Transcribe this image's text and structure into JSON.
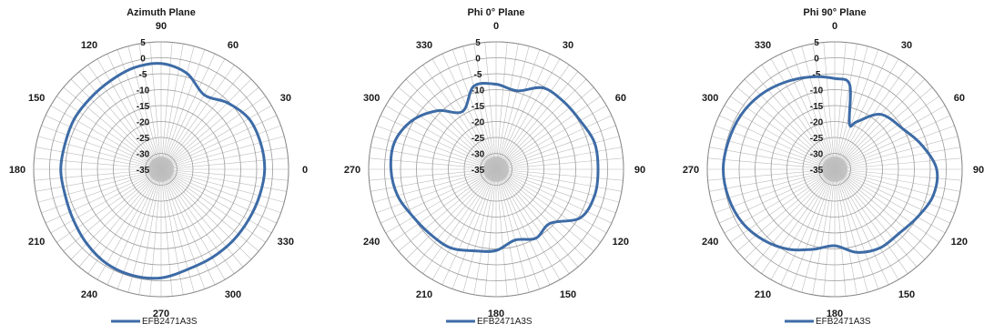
{
  "chart_data": [
    {
      "type": "polar",
      "title": "Azimuth Plane",
      "angle_labels": [
        "90",
        "60",
        "30",
        "0",
        "330",
        "300",
        "270",
        "240",
        "210",
        "180",
        "150",
        "120"
      ],
      "angle_label_positions_deg": [
        90,
        60,
        30,
        0,
        330,
        300,
        270,
        240,
        210,
        180,
        150,
        120
      ],
      "orientation": "counterclockwise, 0 at right",
      "r_ticks": [
        "5",
        "0",
        "-5",
        "-10",
        "-15",
        "-20",
        "-25",
        "-30",
        "-35"
      ],
      "r_range": [
        -35,
        5
      ],
      "series": [
        {
          "name": "EFB2471A3S",
          "color": "#3d6ba6",
          "points": [
            [
              0,
              -2.5
            ],
            [
              15,
              -2.7
            ],
            [
              30,
              -3.2
            ],
            [
              45,
              -5.5
            ],
            [
              60,
              -8.0
            ],
            [
              75,
              -3.8
            ],
            [
              90,
              -1.8
            ],
            [
              105,
              -2.0
            ],
            [
              120,
              -3.0
            ],
            [
              135,
              -3.5
            ],
            [
              150,
              -3.5
            ],
            [
              165,
              -3.8
            ],
            [
              180,
              -3.5
            ],
            [
              195,
              -3.8
            ],
            [
              210,
              -3.2
            ],
            [
              225,
              -2.0
            ],
            [
              240,
              -0.8
            ],
            [
              255,
              -0.5
            ],
            [
              270,
              -0.9
            ],
            [
              285,
              -2.5
            ],
            [
              300,
              -3.0
            ],
            [
              315,
              -3.2
            ],
            [
              330,
              -3.3
            ],
            [
              345,
              -3.0
            ]
          ]
        }
      ],
      "legend": "bottom"
    },
    {
      "type": "polar",
      "title": "Phi 0° Plane",
      "angle_labels": [
        "0",
        "30",
        "60",
        "90",
        "120",
        "150",
        "180",
        "210",
        "240",
        "270",
        "300",
        "330"
      ],
      "angle_label_positions_deg": [
        0,
        30,
        60,
        90,
        120,
        150,
        180,
        210,
        240,
        270,
        300,
        330
      ],
      "orientation": "clockwise, 0 at top",
      "r_ticks": [
        "5",
        "0",
        "-5",
        "-10",
        "-15",
        "-20",
        "-25",
        "-30",
        "-35"
      ],
      "r_range": [
        -35,
        5
      ],
      "series": [
        {
          "name": "EFB2471A3S",
          "color": "#3d6ba6",
          "points": [
            [
              0,
              -8.3
            ],
            [
              15,
              -9.5
            ],
            [
              30,
              -5.5
            ],
            [
              45,
              -5.0
            ],
            [
              60,
              -4.5
            ],
            [
              75,
              -3.0
            ],
            [
              90,
              -3.0
            ],
            [
              105,
              -3.0
            ],
            [
              120,
              -4.5
            ],
            [
              135,
              -11.0
            ],
            [
              150,
              -10.0
            ],
            [
              165,
              -12.0
            ],
            [
              180,
              -9.5
            ],
            [
              195,
              -8.5
            ],
            [
              210,
              -6.5
            ],
            [
              225,
              -6.0
            ],
            [
              240,
              -5.0
            ],
            [
              255,
              -3.0
            ],
            [
              270,
              -2.0
            ],
            [
              285,
              -2.0
            ],
            [
              300,
              -4.5
            ],
            [
              315,
              -9.0
            ],
            [
              330,
              -14.0
            ],
            [
              345,
              -8.0
            ]
          ]
        }
      ],
      "legend": "bottom"
    },
    {
      "type": "polar",
      "title": "Phi 90° Plane",
      "angle_labels": [
        "0",
        "30",
        "60",
        "90",
        "120",
        "150",
        "180",
        "210",
        "240",
        "270",
        "300",
        "330"
      ],
      "angle_label_positions_deg": [
        0,
        30,
        60,
        90,
        120,
        150,
        180,
        210,
        240,
        270,
        300,
        330
      ],
      "orientation": "clockwise, 0 at top",
      "r_ticks": [
        "5",
        "0",
        "-5",
        "-10",
        "-15",
        "-20",
        "-25",
        "-30",
        "-35"
      ],
      "r_range": [
        -35,
        5
      ],
      "series": [
        {
          "name": "EFB2471A3S",
          "color": "#3d6ba6",
          "points": [
            [
              0,
              -6.5
            ],
            [
              10,
              -8.0
            ],
            [
              18,
              -20.0
            ],
            [
              25,
              -18.5
            ],
            [
              40,
              -12.5
            ],
            [
              60,
              -10.0
            ],
            [
              75,
              -6.5
            ],
            [
              90,
              -3.0
            ],
            [
              105,
              -3.0
            ],
            [
              120,
              -5.0
            ],
            [
              135,
              -6.5
            ],
            [
              150,
              -6.5
            ],
            [
              165,
              -8.0
            ],
            [
              180,
              -11.0
            ],
            [
              195,
              -9.0
            ],
            [
              210,
              -6.0
            ],
            [
              225,
              -3.5
            ],
            [
              240,
              -1.5
            ],
            [
              255,
              -0.5
            ],
            [
              270,
              0.0
            ],
            [
              285,
              -0.5
            ],
            [
              300,
              -1.0
            ],
            [
              315,
              -2.0
            ],
            [
              330,
              -3.5
            ],
            [
              345,
              -5.0
            ]
          ]
        }
      ],
      "legend": "bottom"
    }
  ]
}
